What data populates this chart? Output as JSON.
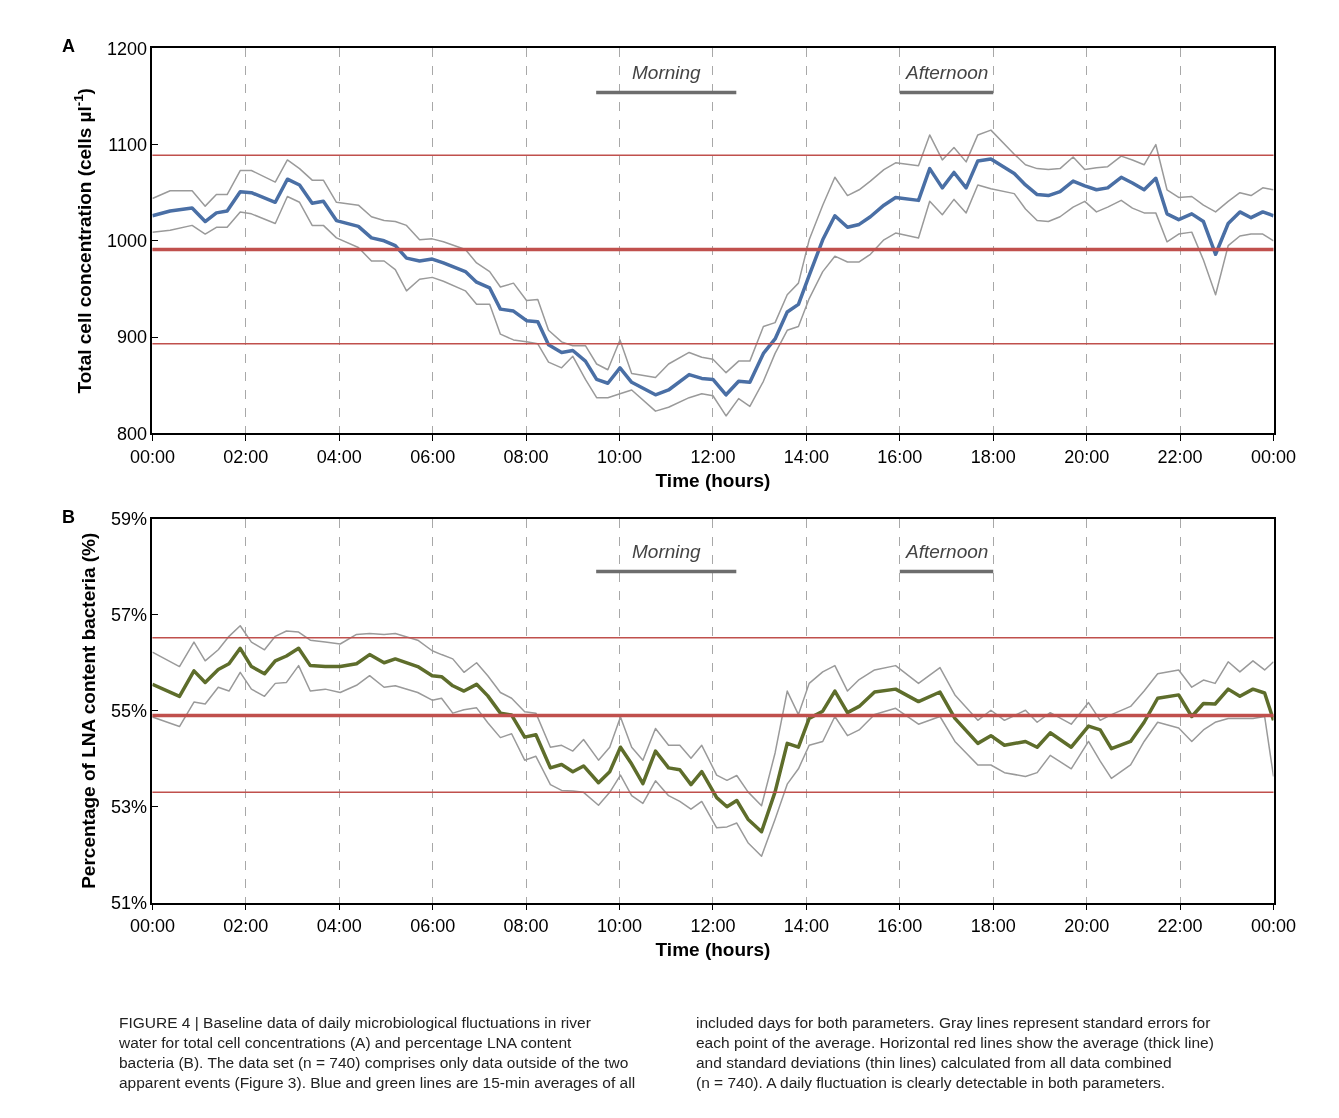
{
  "chart_data": [
    {
      "type": "line",
      "xlabel": "Time (hours)",
      "ylabel": "Total cell concentration (cells µl$^{-1}$)",
      "xlim": [
        0,
        24
      ],
      "xticks": [
        {
          "value": 0,
          "label": "00:00"
        },
        {
          "value": 2,
          "label": "02:00"
        },
        {
          "value": 4,
          "label": "04:00"
        },
        {
          "value": 6,
          "label": "06:00"
        },
        {
          "value": 8,
          "label": "08:00"
        },
        {
          "value": 10,
          "label": "10:00"
        },
        {
          "value": 12,
          "label": "12:00"
        },
        {
          "value": 14,
          "label": "14:00"
        },
        {
          "value": 16,
          "label": "16:00"
        },
        {
          "value": 18,
          "label": "18:00"
        },
        {
          "value": 20,
          "label": "20:00"
        },
        {
          "value": 22,
          "label": "22:00"
        },
        {
          "value": 24,
          "label": "00:00"
        }
      ],
      "ylim": [
        800,
        1200
      ],
      "yticks": [
        800,
        900,
        1000,
        1100,
        1200
      ],
      "grid": "x",
      "marker": "none",
      "line_style": "solid",
      "x": [
        0,
        0.38,
        0.85,
        1.13,
        1.37,
        1.6,
        1.88,
        2.12,
        2.63,
        2.89,
        3.15,
        3.42,
        3.66,
        3.94,
        4.41,
        4.69,
        4.96,
        5.2,
        5.44,
        5.72,
        5.99,
        6.23,
        6.7,
        6.94,
        7.22,
        7.45,
        7.73,
        8.01,
        8.25,
        8.48,
        8.76,
        9.0,
        9.27,
        9.51,
        9.75,
        10.01,
        10.26,
        10.77,
        11.05,
        11.49,
        11.76,
        12.0,
        12.28,
        12.55,
        12.79,
        13.08,
        13.33,
        13.59,
        13.83,
        14.06,
        14.35,
        14.61,
        14.88,
        15.13,
        15.37,
        15.66,
        15.91,
        16.4,
        16.64,
        16.91,
        17.16,
        17.42,
        17.67,
        17.95,
        18.45,
        18.69,
        18.94,
        19.18,
        19.43,
        19.71,
        19.96,
        20.21,
        20.45,
        20.74,
        20.98,
        21.23,
        21.48,
        21.72,
        21.97,
        22.25,
        22.5,
        22.76,
        23.03,
        23.28,
        23.52,
        23.77,
        24
      ],
      "series": [
        {
          "color": "#4a6fa5",
          "values": [
            1026,
            1031,
            1034,
            1020,
            1029,
            1031,
            1051,
            1050,
            1040,
            1064,
            1058,
            1039,
            1041,
            1021,
            1015,
            1003,
            1000,
            995,
            982,
            979,
            981,
            977,
            968,
            957,
            951,
            929,
            927,
            917,
            916,
            892,
            884,
            886,
            875,
            856,
            852,
            868,
            853,
            840,
            845,
            861,
            857,
            856,
            840,
            854,
            853,
            883,
            898,
            926,
            934,
            964,
            1001,
            1026,
            1014,
            1017,
            1025,
            1037,
            1045,
            1042,
            1075,
            1055,
            1071,
            1055,
            1083,
            1085,
            1070,
            1058,
            1048,
            1047,
            1051,
            1062,
            1057,
            1053,
            1055,
            1066,
            1060,
            1053,
            1065,
            1028,
            1022,
            1028,
            1020,
            986,
            1018,
            1030,
            1024,
            1030,
            1026
          ]
        },
        {
          "color": "#9a9a9a",
          "values": [
            1044,
            1052,
            1052,
            1036,
            1048,
            1048,
            1073,
            1073,
            1061,
            1084,
            1075,
            1063,
            1063,
            1040,
            1037,
            1025,
            1021,
            1020,
            1016,
            1001,
            1002,
            999,
            991,
            977,
            968,
            952,
            956,
            938,
            939,
            907,
            895,
            891,
            891,
            872,
            866,
            897,
            862,
            858,
            872,
            884,
            879,
            877,
            863,
            875,
            875,
            911,
            915,
            944,
            956,
            1001,
            1037,
            1066,
            1047,
            1053,
            1062,
            1074,
            1081,
            1078,
            1110,
            1084,
            1097,
            1082,
            1110,
            1115,
            1090,
            1079,
            1075,
            1074,
            1075,
            1087,
            1074,
            1076,
            1077,
            1088,
            1084,
            1079,
            1100,
            1053,
            1045,
            1046,
            1037,
            1030,
            1041,
            1050,
            1047,
            1055,
            1053
          ]
        },
        {
          "color": "#9a9a9a",
          "values": [
            1009,
            1011,
            1016,
            1007,
            1014,
            1014,
            1030,
            1028,
            1018,
            1046,
            1040,
            1016,
            1016,
            1003,
            993,
            979,
            979,
            970,
            948,
            960,
            962,
            958,
            948,
            934,
            934,
            903,
            897,
            895,
            893,
            874,
            868,
            880,
            856,
            837,
            837,
            841,
            845,
            823,
            827,
            837,
            841,
            839,
            818,
            836,
            828,
            854,
            883,
            907,
            911,
            940,
            968,
            984,
            978,
            978,
            986,
            1001,
            1008,
            1003,
            1041,
            1027,
            1043,
            1029,
            1058,
            1054,
            1049,
            1033,
            1021,
            1020,
            1025,
            1035,
            1041,
            1030,
            1035,
            1042,
            1034,
            1029,
            1029,
            999,
            1007,
            1009,
            980,
            944,
            995,
            1005,
            1007,
            1007,
            1000
          ]
        },
        {
          "color": "#6d6d6d",
          "x": [
            9.5,
            12.5
          ],
          "values": [
            1154,
            1154
          ]
        },
        {
          "color": "#6d6d6d",
          "x": [
            16,
            18
          ],
          "values": [
            1154,
            1154
          ]
        }
      ],
      "ref_lines": [
        {
          "axis": "y",
          "value": 1089,
          "color": "#c0504d"
        },
        {
          "axis": "y",
          "value": 991,
          "color": "#c0504d"
        },
        {
          "axis": "y",
          "value": 893,
          "color": "#c0504d"
        }
      ],
      "annotations": [
        "A",
        "Morning",
        "Afternoon"
      ]
    },
    {
      "type": "line",
      "xlabel": "Time (hours)",
      "ylabel": "Percentage of LNA content bacteria (%)",
      "xlim": [
        0,
        24
      ],
      "xticks": [
        {
          "value": 0,
          "label": "00:00"
        },
        {
          "value": 2,
          "label": "02:00"
        },
        {
          "value": 4,
          "label": "04:00"
        },
        {
          "value": 6,
          "label": "06:00"
        },
        {
          "value": 8,
          "label": "08:00"
        },
        {
          "value": 10,
          "label": "10:00"
        },
        {
          "value": 12,
          "label": "12:00"
        },
        {
          "value": 14,
          "label": "14:00"
        },
        {
          "value": 16,
          "label": "16:00"
        },
        {
          "value": 18,
          "label": "18:00"
        },
        {
          "value": 20,
          "label": "20:00"
        },
        {
          "value": 22,
          "label": "22:00"
        },
        {
          "value": 24,
          "label": "00:00"
        }
      ],
      "ylim": [
        51,
        59
      ],
      "yticks": [
        {
          "value": 51,
          "label": "51%"
        },
        {
          "value": 53,
          "label": "53%"
        },
        {
          "value": 55,
          "label": "55%"
        },
        {
          "value": 57,
          "label": "57%"
        },
        {
          "value": 59,
          "label": "59%"
        }
      ],
      "grid": "x",
      "marker": "none",
      "line_style": "solid",
      "x": [
        0,
        0.58,
        0.89,
        1.13,
        1.41,
        1.64,
        1.88,
        2.12,
        2.4,
        2.63,
        2.87,
        3.13,
        3.38,
        3.7,
        4.02,
        4.37,
        4.65,
        4.96,
        5.2,
        5.68,
        5.99,
        6.19,
        6.43,
        6.67,
        6.94,
        7.18,
        7.45,
        7.69,
        7.97,
        8.21,
        8.52,
        8.76,
        9.0,
        9.23,
        9.55,
        9.79,
        10.02,
        10.26,
        10.5,
        10.77,
        11.05,
        11.29,
        11.53,
        11.76,
        12.08,
        12.3,
        12.51,
        12.75,
        13.04,
        13.33,
        13.59,
        13.83,
        14.06,
        14.35,
        14.61,
        14.88,
        15.13,
        15.46,
        15.91,
        16.4,
        16.86,
        17.18,
        17.67,
        17.95,
        18.24,
        18.69,
        18.94,
        19.22,
        19.67,
        20.04,
        20.29,
        20.53,
        20.94,
        21.23,
        21.52,
        21.97,
        22.25,
        22.5,
        22.75,
        23.03,
        23.28,
        23.56,
        23.81,
        24
      ],
      "series": [
        {
          "color": "#5e6d2b",
          "values": [
            55.55,
            55.3,
            55.83,
            55.59,
            55.86,
            55.98,
            56.3,
            55.92,
            55.77,
            56.04,
            56.14,
            56.3,
            55.94,
            55.92,
            55.92,
            55.98,
            56.17,
            56.0,
            56.08,
            55.92,
            55.73,
            55.71,
            55.52,
            55.41,
            55.55,
            55.31,
            54.95,
            54.91,
            54.45,
            54.5,
            53.81,
            53.88,
            53.73,
            53.85,
            53.5,
            53.73,
            54.24,
            53.89,
            53.48,
            54.16,
            53.81,
            53.77,
            53.46,
            53.73,
            53.19,
            53.0,
            53.13,
            52.74,
            52.48,
            53.31,
            54.32,
            54.24,
            54.84,
            54.99,
            55.41,
            54.96,
            55.09,
            55.39,
            55.45,
            55.19,
            55.39,
            54.84,
            54.32,
            54.48,
            54.28,
            54.36,
            54.24,
            54.54,
            54.24,
            54.68,
            54.6,
            54.21,
            54.36,
            54.76,
            55.26,
            55.33,
            54.88,
            55.15,
            55.14,
            55.45,
            55.3,
            55.45,
            55.37,
            54.8
          ]
        },
        {
          "color": "#9a9a9a",
          "values": [
            56.22,
            55.92,
            56.43,
            56.04,
            56.27,
            56.55,
            56.77,
            56.43,
            56.27,
            56.55,
            56.66,
            56.64,
            56.47,
            56.43,
            56.39,
            56.59,
            56.61,
            56.59,
            56.61,
            56.47,
            56.25,
            56.17,
            56.08,
            55.8,
            56.0,
            55.73,
            55.38,
            55.26,
            54.98,
            54.95,
            54.24,
            54.28,
            54.16,
            54.4,
            53.97,
            54.24,
            54.87,
            54.24,
            53.97,
            54.63,
            54.28,
            54.28,
            54.01,
            54.28,
            53.66,
            53.55,
            53.65,
            53.31,
            53.02,
            54.12,
            55.41,
            54.92,
            55.57,
            55.81,
            55.94,
            55.41,
            55.65,
            55.85,
            55.94,
            55.57,
            55.9,
            55.33,
            54.8,
            55.01,
            54.8,
            55.01,
            54.76,
            54.96,
            54.72,
            55.17,
            54.8,
            54.92,
            55.09,
            55.41,
            55.77,
            55.85,
            55.49,
            55.64,
            55.57,
            56.02,
            55.81,
            56.04,
            55.85,
            56.02
          ]
        },
        {
          "color": "#9a9a9a",
          "values": [
            54.87,
            54.67,
            55.18,
            55.14,
            55.49,
            55.41,
            55.8,
            55.45,
            55.3,
            55.57,
            55.59,
            55.94,
            55.41,
            55.45,
            55.38,
            55.53,
            55.73,
            55.49,
            55.52,
            55.38,
            55.22,
            55.26,
            54.95,
            55.02,
            55.06,
            54.75,
            54.44,
            54.52,
            53.97,
            54.05,
            53.46,
            53.34,
            53.33,
            53.3,
            53.03,
            53.3,
            53.66,
            53.23,
            53.07,
            53.54,
            53.23,
            53.11,
            52.95,
            53.11,
            52.56,
            52.58,
            52.66,
            52.25,
            51.97,
            52.74,
            53.47,
            53.79,
            54.28,
            54.36,
            54.88,
            54.48,
            54.6,
            54.92,
            55.05,
            54.72,
            54.88,
            54.36,
            53.87,
            53.87,
            53.71,
            53.63,
            53.71,
            54.07,
            53.79,
            54.36,
            53.95,
            53.59,
            53.87,
            54.36,
            54.76,
            54.64,
            54.36,
            54.6,
            54.76,
            54.84,
            54.84,
            54.84,
            54.88,
            53.63
          ]
        },
        {
          "color": "#6d6d6d",
          "x": [
            9.5,
            12.5
          ],
          "values": [
            57.9,
            57.9
          ]
        },
        {
          "color": "#6d6d6d",
          "x": [
            16,
            18
          ],
          "values": [
            57.9,
            57.9
          ]
        }
      ],
      "ref_lines": [
        {
          "axis": "y",
          "value": 56.52,
          "color": "#c0504d"
        },
        {
          "axis": "y",
          "value": 54.9,
          "color": "#c0504d"
        },
        {
          "axis": "y",
          "value": 53.3,
          "color": "#c0504d"
        }
      ],
      "annotations": [
        "B",
        "Morning",
        "Afternoon",
        "FIGURE 4 | Baseline data of daily microbiological fluctuations in river\nwater for total cell concentrations (A) and percentage LNA content\nbacteria (B). The data set (n = 740) comprises only data outside of the two\napparent events (Figure 3). Blue and green lines are 15-min averages of all",
        "included days for both parameters. Gray lines represent standard errors for\neach point of the average. Horizontal red lines show the average (thick line)\nand standard deviations (thin lines) calculated from all data combined\n(n = 740). A daily fluctuation is clearly detectable in both parameters."
      ]
    }
  ]
}
